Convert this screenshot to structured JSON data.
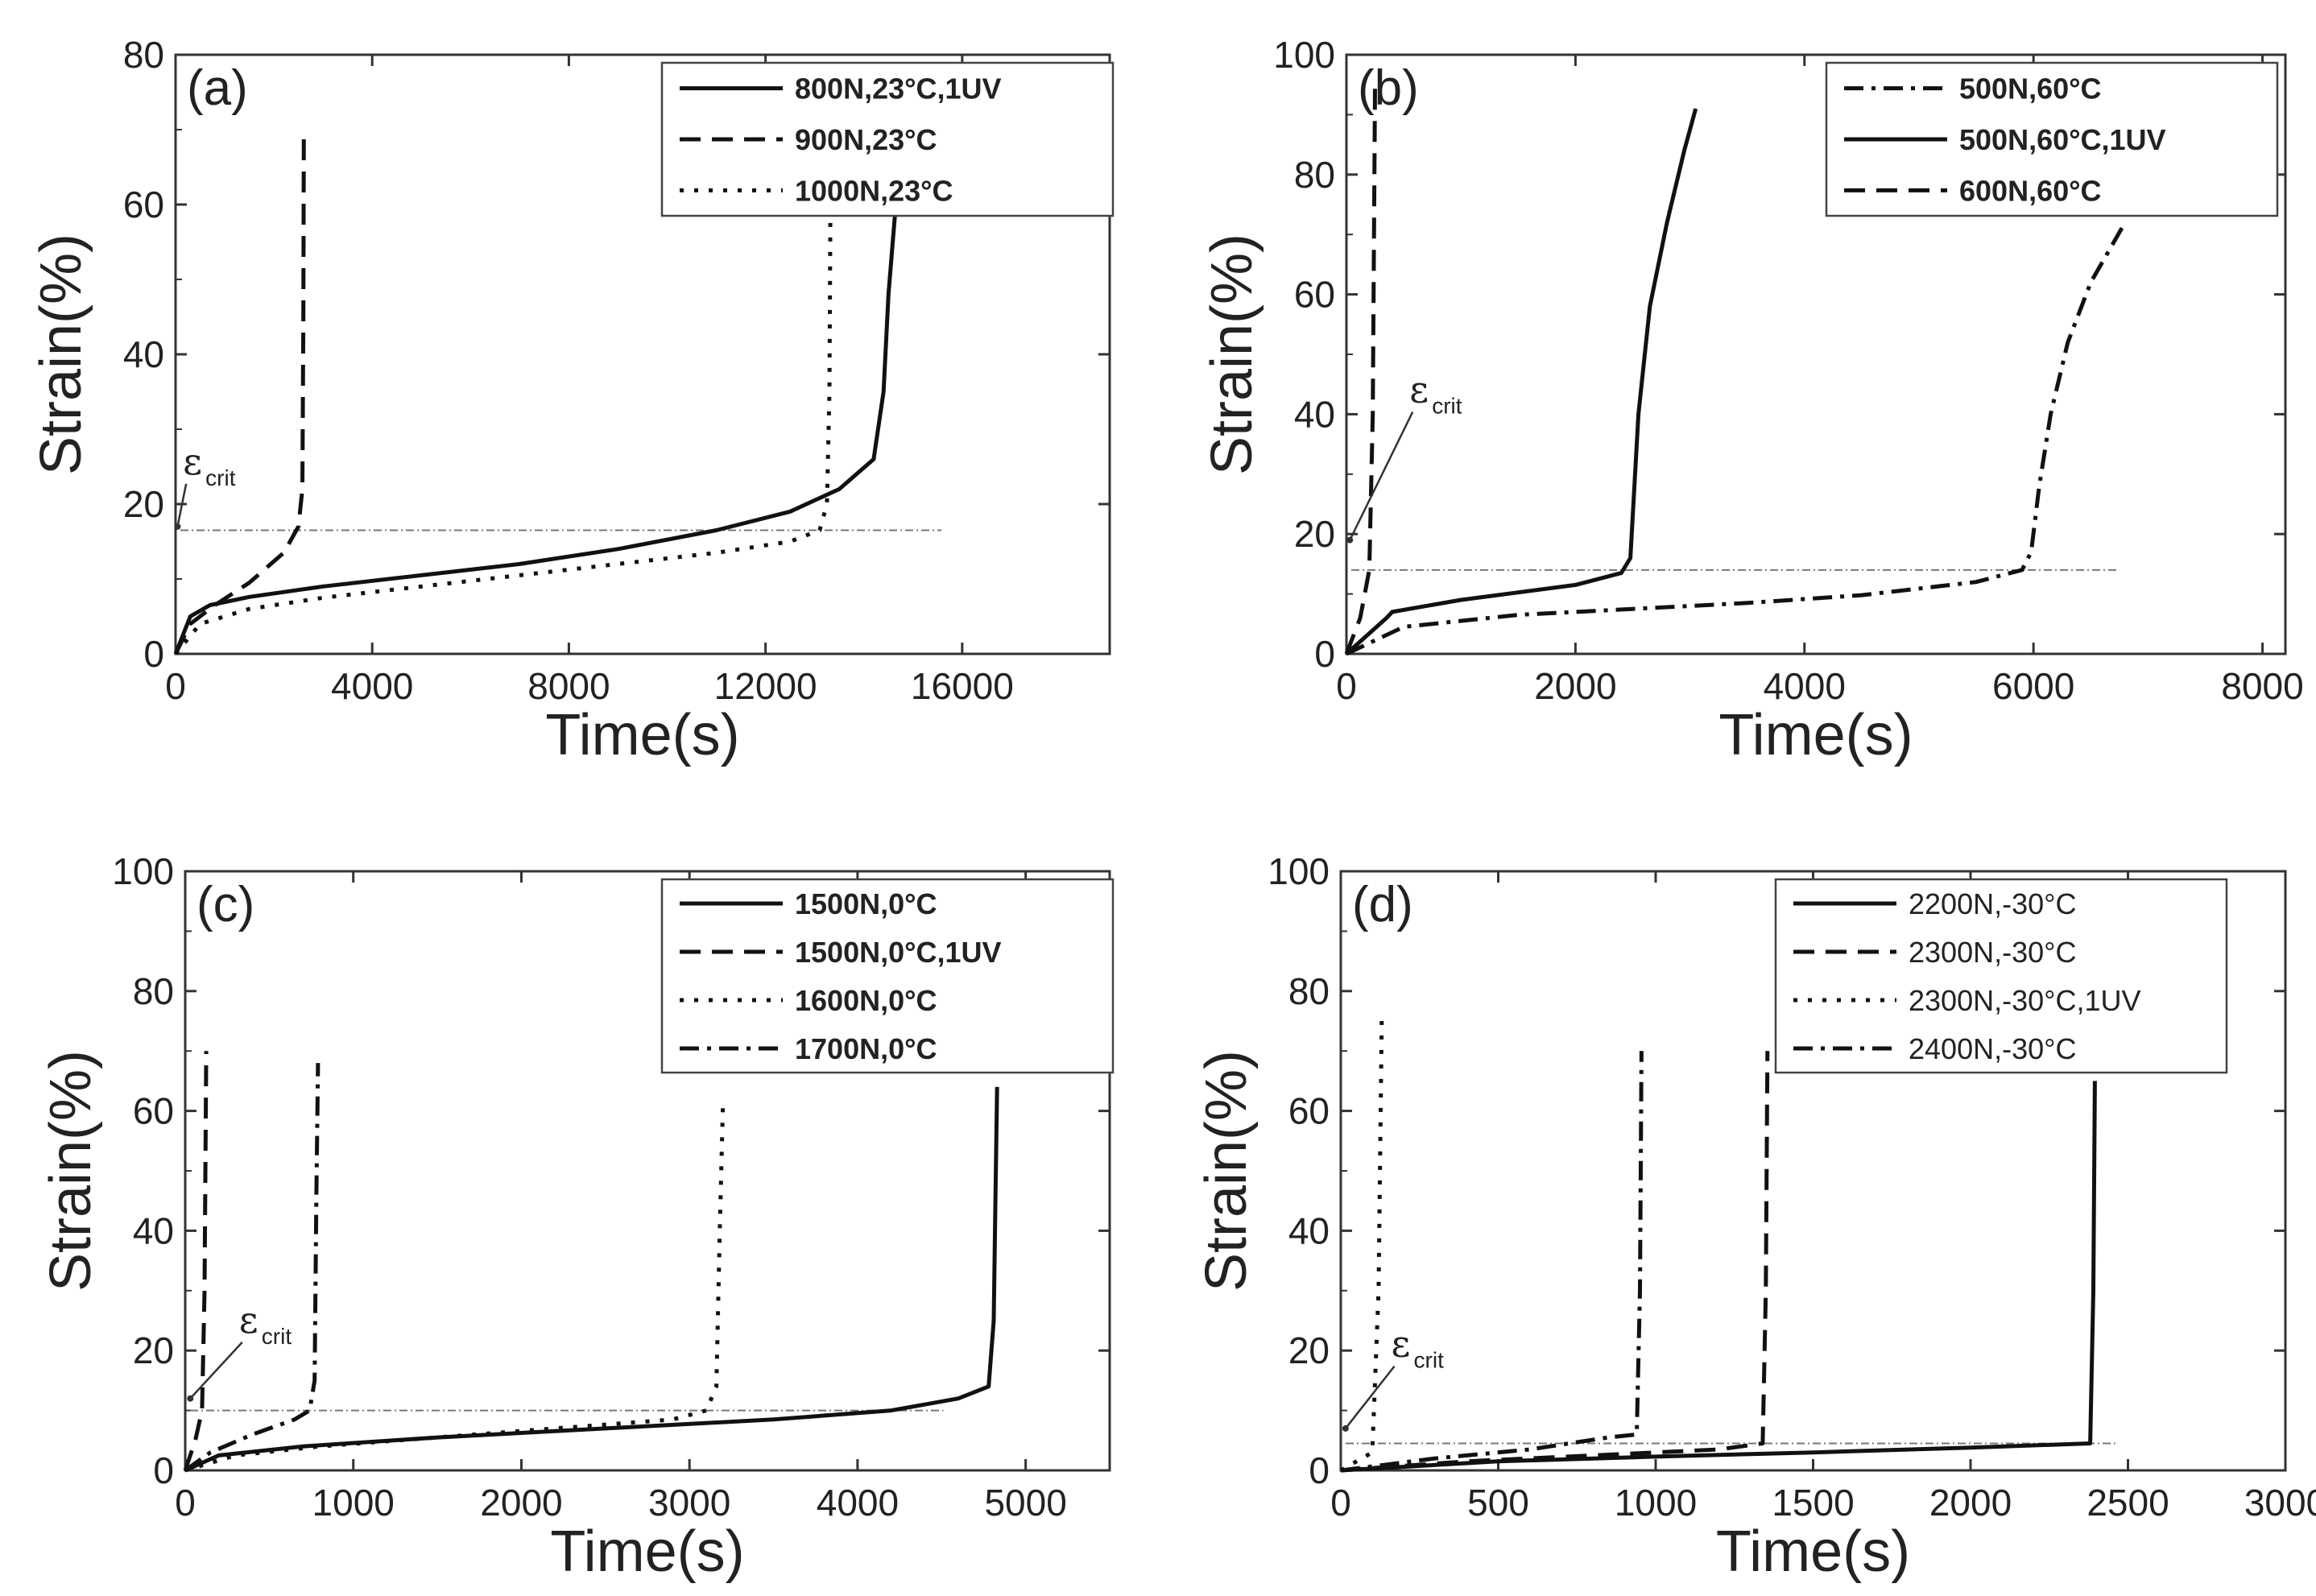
{
  "chart_data": [
    {
      "type": "line",
      "panel_label": "(a)",
      "xlabel": "Time(s)",
      "ylabel": "Strain(%)",
      "xlim": [
        0,
        19000
      ],
      "ylim": [
        0,
        80
      ],
      "xticks": [
        0,
        4000,
        8000,
        12000,
        16000
      ],
      "yticks": [
        0,
        20,
        40,
        60,
        80
      ],
      "xtick_labels": [
        "0",
        "4000",
        "8000",
        "12000",
        "16000"
      ],
      "ytick_labels": [
        "0",
        "20",
        "40",
        "60",
        "80"
      ],
      "legend_bold": true,
      "annotation": {
        "main": "ε",
        "sub": "crit",
        "x": 150,
        "y": 24,
        "arrow_to": [
          40,
          17
        ]
      },
      "critical_strain": 16.5,
      "series": [
        {
          "name": "800N,23°C,1UV",
          "style": "solid",
          "x": [
            0,
            300,
            700,
            1500,
            3000,
            5000,
            7000,
            9000,
            11000,
            12500,
            13500,
            14200,
            14400,
            14500,
            14650
          ],
          "y": [
            0,
            5,
            6.5,
            7.6,
            9,
            10.5,
            12,
            14,
            16.5,
            19,
            22,
            26,
            35,
            48,
            60
          ]
        },
        {
          "name": "900N,23°C",
          "style": "dashed",
          "x": [
            0,
            300,
            800,
            1500,
            2200,
            2500,
            2580,
            2600,
            2610
          ],
          "y": [
            0,
            4,
            6.5,
            9.5,
            13.5,
            17,
            22,
            45,
            70
          ]
        },
        {
          "name": "1000N,23°C",
          "style": "dotted",
          "x": [
            0,
            500,
            1500,
            3000,
            5000,
            7000,
            9000,
            11000,
            12500,
            13100,
            13250,
            13300,
            13320
          ],
          "y": [
            0,
            4,
            6,
            7.5,
            9,
            10.5,
            12,
            13.5,
            15,
            16.5,
            20,
            35,
            60
          ]
        }
      ]
    },
    {
      "type": "line",
      "panel_label": "(b)",
      "xlabel": "Time(s)",
      "ylabel": "Strain(%)",
      "xlim": [
        0,
        8200
      ],
      "ylim": [
        0,
        100
      ],
      "xticks": [
        0,
        2000,
        4000,
        6000,
        8000
      ],
      "yticks": [
        0,
        20,
        40,
        60,
        80,
        100
      ],
      "xtick_labels": [
        "0",
        "2000",
        "4000",
        "6000",
        "8000"
      ],
      "ytick_labels": [
        "0",
        "20",
        "40",
        "60",
        "80",
        "100"
      ],
      "legend_bold": true,
      "annotation": {
        "main": "ε",
        "sub": "crit",
        "x": 550,
        "y": 42,
        "arrow_to": [
          30,
          19
        ]
      },
      "critical_strain": 14,
      "series": [
        {
          "name": "500N,60°C",
          "style": "dashdot",
          "x": [
            0,
            500,
            1500,
            2500,
            3500,
            4500,
            5500,
            5900,
            5980,
            6050,
            6150,
            6300,
            6500,
            6800
          ],
          "y": [
            0,
            4.5,
            6.5,
            7.5,
            8.5,
            9.8,
            12,
            14,
            17,
            28,
            40,
            52,
            62,
            72
          ]
        },
        {
          "name": "500N,60°C,1UV",
          "style": "solid",
          "x": [
            0,
            350,
            400,
            1000,
            2000,
            2400,
            2480,
            2550,
            2650,
            2800,
            2950,
            3050
          ],
          "y": [
            0,
            6,
            7,
            9,
            11.5,
            13.5,
            16,
            40,
            58,
            72,
            84,
            91
          ]
        },
        {
          "name": "600N,60°C",
          "style": "dashed",
          "x": [
            0,
            120,
            200,
            230,
            250
          ],
          "y": [
            0,
            6,
            14,
            40,
            95
          ]
        }
      ]
    },
    {
      "type": "line",
      "panel_label": "(c)",
      "xlabel": "Time(s)",
      "ylabel": "Strain(%)",
      "xlim": [
        0,
        5500
      ],
      "ylim": [
        0,
        100
      ],
      "xticks": [
        0,
        1000,
        2000,
        3000,
        4000,
        5000
      ],
      "yticks": [
        0,
        20,
        40,
        60,
        80,
        100
      ],
      "xtick_labels": [
        "0",
        "1000",
        "2000",
        "3000",
        "4000",
        "5000"
      ],
      "ytick_labels": [
        "0",
        "20",
        "40",
        "60",
        "80",
        "100"
      ],
      "legend_bold": true,
      "annotation": {
        "main": "ε",
        "sub": "crit",
        "x": 320,
        "y": 23,
        "arrow_to": [
          30,
          12
        ]
      },
      "critical_strain": 10,
      "series": [
        {
          "name": "1500N,0°C",
          "style": "solid",
          "x": [
            0,
            200,
            700,
            1500,
            2500,
            3500,
            4200,
            4600,
            4780,
            4810,
            4820,
            4830
          ],
          "y": [
            0,
            2.5,
            4,
            5.5,
            7,
            8.5,
            10,
            12,
            14,
            25,
            45,
            64
          ]
        },
        {
          "name": "1500N,0°C,1UV",
          "style": "dashed",
          "x": [
            0,
            60,
            100,
            115,
            125
          ],
          "y": [
            0,
            5,
            10,
            30,
            70
          ]
        },
        {
          "name": "1600N,0°C",
          "style": "dotted",
          "x": [
            0,
            300,
            800,
            1500,
            2200,
            2900,
            3100,
            3160,
            3180,
            3200
          ],
          "y": [
            0,
            2.5,
            4,
            5.5,
            7,
            8.5,
            10,
            14,
            40,
            62
          ]
        },
        {
          "name": "1700N,0°C",
          "style": "dashdot",
          "x": [
            0,
            150,
            400,
            650,
            740,
            770,
            780,
            790
          ],
          "y": [
            0,
            3,
            6,
            8.5,
            10,
            15,
            45,
            68
          ]
        }
      ]
    },
    {
      "type": "line",
      "panel_label": "(d)",
      "xlabel": "Time(s)",
      "ylabel": "Strain(%)",
      "xlim": [
        0,
        3000
      ],
      "ylim": [
        0,
        100
      ],
      "xticks": [
        0,
        500,
        1000,
        1500,
        2000,
        2500,
        3000
      ],
      "yticks": [
        0,
        20,
        40,
        60,
        80,
        100
      ],
      "xtick_labels": [
        "0",
        "500",
        "1000",
        "1500",
        "2000",
        "2500",
        "3000"
      ],
      "ytick_labels": [
        "0",
        "20",
        "40",
        "60",
        "80",
        "100"
      ],
      "legend_bold": false,
      "annotation": {
        "main": "ε",
        "sub": "crit",
        "x": 160,
        "y": 19,
        "arrow_to": [
          15,
          7
        ]
      },
      "critical_strain": 4.5,
      "series": [
        {
          "name": "2200N,-30°C",
          "style": "solid",
          "x": [
            0,
            500,
            1000,
            1500,
            2000,
            2380,
            2390,
            2395
          ],
          "y": [
            0,
            1.5,
            2.3,
            3,
            3.8,
            4.5,
            30,
            65
          ]
        },
        {
          "name": "2300N,-30°C",
          "style": "dashed",
          "x": [
            0,
            400,
            800,
            1200,
            1340,
            1350,
            1355
          ],
          "y": [
            0,
            1.5,
            2.5,
            3.5,
            4.5,
            30,
            70
          ]
        },
        {
          "name": "2300N,-30°C,1UV",
          "style": "dotted",
          "x": [
            0,
            100,
            120,
            130
          ],
          "y": [
            0,
            3,
            30,
            75
          ]
        },
        {
          "name": "2400N,-30°C",
          "style": "dashdot",
          "x": [
            0,
            300,
            600,
            850,
            940,
            950,
            955
          ],
          "y": [
            0,
            2,
            3.5,
            5.5,
            6,
            30,
            70
          ]
        }
      ]
    }
  ]
}
